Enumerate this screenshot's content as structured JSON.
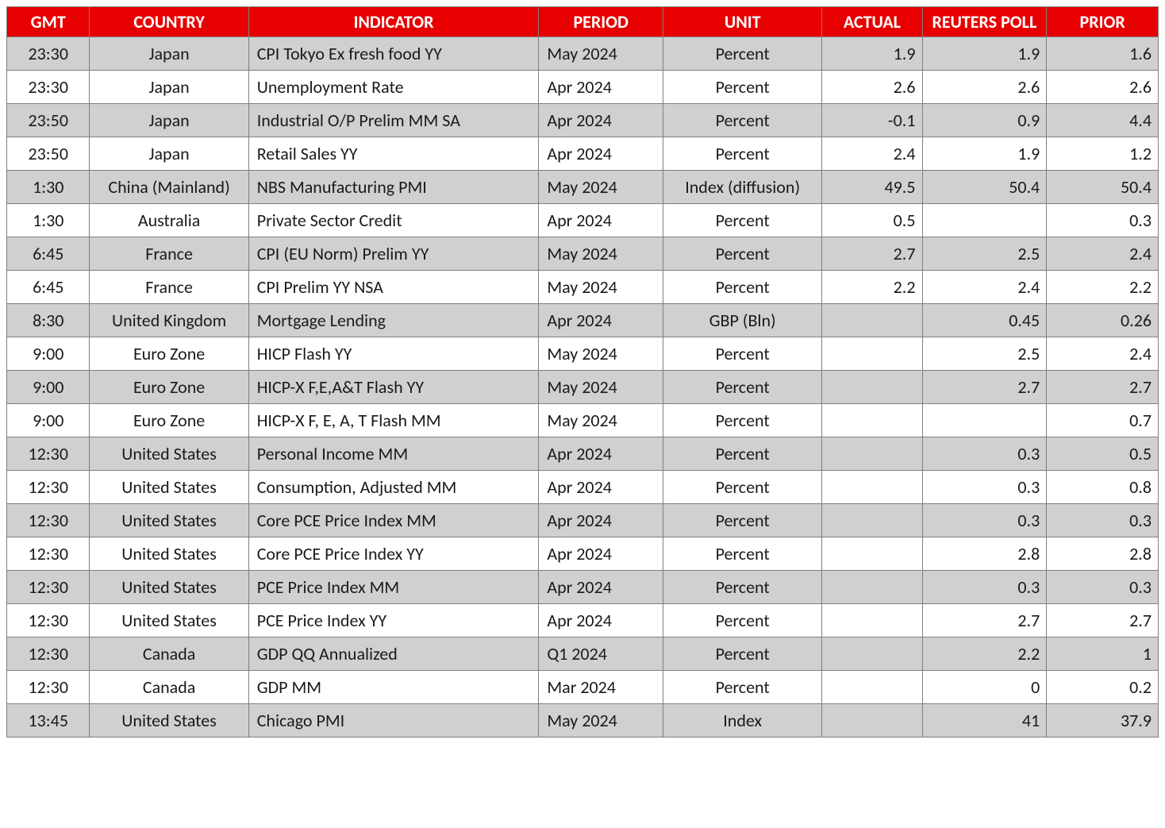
{
  "table": {
    "header_bg": "#e80000",
    "header_fg": "#ffffff",
    "row_alt_bg": "#d0d0d0",
    "row_bg": "#ffffff",
    "border_color": "#7f7f7f",
    "text_color": "#1a1a1a",
    "font_size_pt": 16,
    "columns": [
      {
        "key": "gmt",
        "label": "GMT",
        "align": "center",
        "width_pct": 7.2
      },
      {
        "key": "ctry",
        "label": "COUNTRY",
        "align": "center",
        "width_pct": 13.8
      },
      {
        "key": "ind",
        "label": "INDICATOR",
        "align": "left",
        "width_pct": 25.2
      },
      {
        "key": "per",
        "label": "PERIOD",
        "align": "left",
        "width_pct": 10.8
      },
      {
        "key": "unit",
        "label": "UNIT",
        "align": "center",
        "width_pct": 13.8
      },
      {
        "key": "act",
        "label": "ACTUAL",
        "align": "right",
        "width_pct": 8.7
      },
      {
        "key": "poll",
        "label": "REUTERS POLL",
        "align": "right",
        "width_pct": 10.8
      },
      {
        "key": "prior",
        "label": "PRIOR",
        "align": "right",
        "width_pct": 9.7
      }
    ],
    "rows": [
      {
        "gmt": "23:30",
        "ctry": "Japan",
        "ind": "CPI Tokyo Ex fresh food YY",
        "per": "May 2024",
        "unit": "Percent",
        "act": "1.9",
        "poll": "1.9",
        "prior": "1.6"
      },
      {
        "gmt": "23:30",
        "ctry": "Japan",
        "ind": "Unemployment Rate",
        "per": "Apr 2024",
        "unit": "Percent",
        "act": "2.6",
        "poll": "2.6",
        "prior": "2.6"
      },
      {
        "gmt": "23:50",
        "ctry": "Japan",
        "ind": "Industrial O/P Prelim MM SA",
        "per": "Apr 2024",
        "unit": "Percent",
        "act": "-0.1",
        "poll": "0.9",
        "prior": "4.4"
      },
      {
        "gmt": "23:50",
        "ctry": "Japan",
        "ind": "Retail Sales YY",
        "per": "Apr 2024",
        "unit": "Percent",
        "act": "2.4",
        "poll": "1.9",
        "prior": "1.2"
      },
      {
        "gmt": "1:30",
        "ctry": "China (Mainland)",
        "ind": "NBS Manufacturing PMI",
        "per": "May 2024",
        "unit": "Index (diffusion)",
        "act": "49.5",
        "poll": "50.4",
        "prior": "50.4"
      },
      {
        "gmt": "1:30",
        "ctry": "Australia",
        "ind": "Private Sector Credit",
        "per": "Apr 2024",
        "unit": "Percent",
        "act": "0.5",
        "poll": "",
        "prior": "0.3"
      },
      {
        "gmt": "6:45",
        "ctry": "France",
        "ind": "CPI (EU Norm) Prelim YY",
        "per": "May 2024",
        "unit": "Percent",
        "act": "2.7",
        "poll": "2.5",
        "prior": "2.4"
      },
      {
        "gmt": "6:45",
        "ctry": "France",
        "ind": "CPI Prelim YY NSA",
        "per": "May 2024",
        "unit": "Percent",
        "act": "2.2",
        "poll": "2.4",
        "prior": "2.2"
      },
      {
        "gmt": "8:30",
        "ctry": "United Kingdom",
        "ind": "Mortgage Lending",
        "per": "Apr 2024",
        "unit": "GBP (Bln)",
        "act": "",
        "poll": "0.45",
        "prior": "0.26"
      },
      {
        "gmt": "9:00",
        "ctry": "Euro Zone",
        "ind": "HICP Flash YY",
        "per": "May 2024",
        "unit": "Percent",
        "act": "",
        "poll": "2.5",
        "prior": "2.4"
      },
      {
        "gmt": "9:00",
        "ctry": "Euro Zone",
        "ind": "HICP-X F,E,A&T Flash YY",
        "per": "May 2024",
        "unit": "Percent",
        "act": "",
        "poll": "2.7",
        "prior": "2.7"
      },
      {
        "gmt": "9:00",
        "ctry": "Euro Zone",
        "ind": "HICP-X F, E, A, T Flash MM",
        "per": "May 2024",
        "unit": "Percent",
        "act": "",
        "poll": "",
        "prior": "0.7"
      },
      {
        "gmt": "12:30",
        "ctry": "United States",
        "ind": "Personal Income MM",
        "per": "Apr 2024",
        "unit": "Percent",
        "act": "",
        "poll": "0.3",
        "prior": "0.5"
      },
      {
        "gmt": "12:30",
        "ctry": "United States",
        "ind": "Consumption, Adjusted MM",
        "per": "Apr 2024",
        "unit": "Percent",
        "act": "",
        "poll": "0.3",
        "prior": "0.8"
      },
      {
        "gmt": "12:30",
        "ctry": "United States",
        "ind": "Core PCE Price Index MM",
        "per": "Apr 2024",
        "unit": "Percent",
        "act": "",
        "poll": "0.3",
        "prior": "0.3"
      },
      {
        "gmt": "12:30",
        "ctry": "United States",
        "ind": "Core PCE Price Index YY",
        "per": "Apr 2024",
        "unit": "Percent",
        "act": "",
        "poll": "2.8",
        "prior": "2.8"
      },
      {
        "gmt": "12:30",
        "ctry": "United States",
        "ind": "PCE Price Index MM",
        "per": "Apr 2024",
        "unit": "Percent",
        "act": "",
        "poll": "0.3",
        "prior": "0.3"
      },
      {
        "gmt": "12:30",
        "ctry": "United States",
        "ind": "PCE Price Index YY",
        "per": "Apr 2024",
        "unit": "Percent",
        "act": "",
        "poll": "2.7",
        "prior": "2.7"
      },
      {
        "gmt": "12:30",
        "ctry": "Canada",
        "ind": "GDP QQ Annualized",
        "per": "Q1 2024",
        "unit": "Percent",
        "act": "",
        "poll": "2.2",
        "prior": "1"
      },
      {
        "gmt": "12:30",
        "ctry": "Canada",
        "ind": "GDP MM",
        "per": "Mar 2024",
        "unit": "Percent",
        "act": "",
        "poll": "0",
        "prior": "0.2"
      },
      {
        "gmt": "13:45",
        "ctry": "United States",
        "ind": "Chicago PMI",
        "per": "May 2024",
        "unit": "Index",
        "act": "",
        "poll": "41",
        "prior": "37.9"
      }
    ]
  }
}
